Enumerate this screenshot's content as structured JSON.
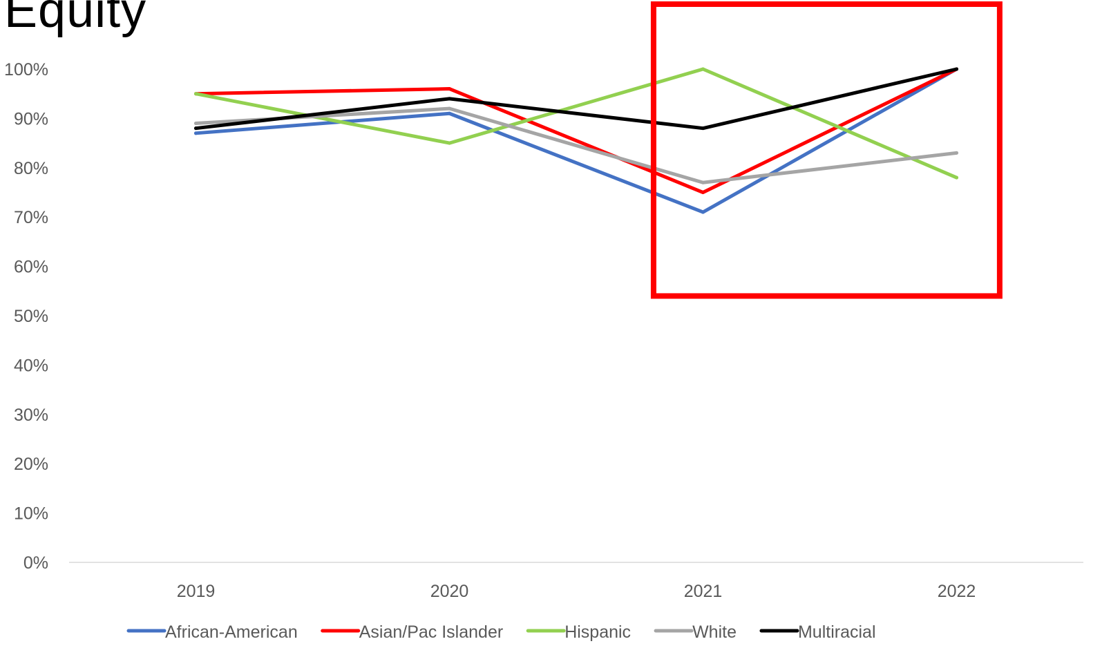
{
  "chart_data": {
    "type": "line",
    "title": "Equity",
    "xlabel": "",
    "ylabel": "",
    "categories": [
      "2019",
      "2020",
      "2021",
      "2022"
    ],
    "ylim": [
      0,
      100
    ],
    "yticks": [
      "0%",
      "10%",
      "20%",
      "30%",
      "40%",
      "50%",
      "60%",
      "70%",
      "80%",
      "90%",
      "100%"
    ],
    "grid": false,
    "legend_position": "bottom",
    "series": [
      {
        "name": "African-American",
        "color": "#4472C4",
        "values": [
          87,
          91,
          71,
          100
        ]
      },
      {
        "name": "Asian/Pac Islander",
        "color": "#FF0000",
        "values": [
          95,
          96,
          75,
          100
        ]
      },
      {
        "name": "Hispanic",
        "color": "#92D050",
        "values": [
          95,
          85,
          100,
          78
        ]
      },
      {
        "name": "White",
        "color": "#A5A5A5",
        "values": [
          89,
          92,
          77,
          83
        ]
      },
      {
        "name": "Multiracial",
        "color": "#000000",
        "values": [
          88,
          94,
          88,
          100
        ]
      }
    ],
    "annotation": {
      "type": "highlight-box",
      "color": "#FF0000",
      "spans_categories": [
        "2021",
        "2022"
      ],
      "y_range": [
        54,
        100
      ]
    }
  }
}
